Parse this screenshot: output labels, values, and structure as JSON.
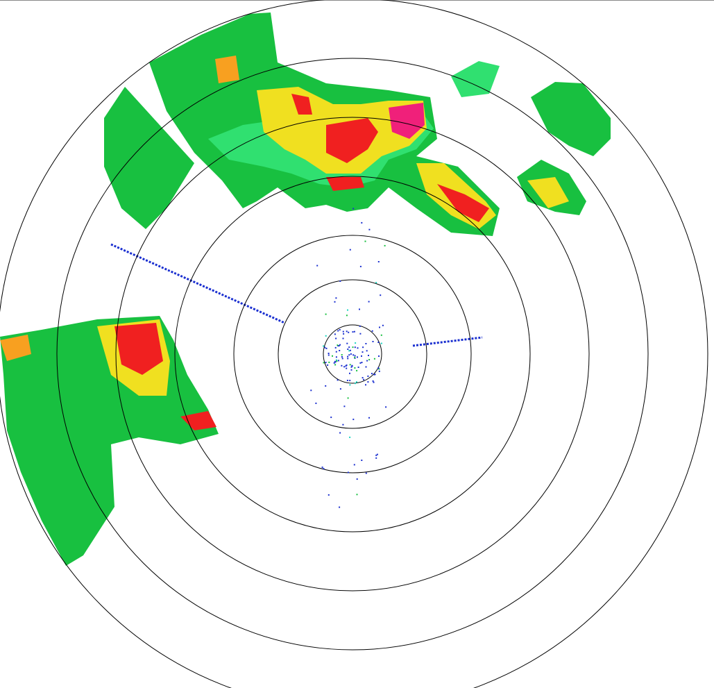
{
  "radar": {
    "product": "reflectivity-ppi",
    "range_ring_count": 7,
    "colors": {
      "ring": "#000000",
      "weak_blue": "#1a2fd0",
      "light_cyan": "#19d6c0",
      "green": "#18c040",
      "light_green": "#30e070",
      "yellow": "#f0e020",
      "orange": "#f8a020",
      "red": "#f02020",
      "magenta": "#f0207a"
    }
  }
}
